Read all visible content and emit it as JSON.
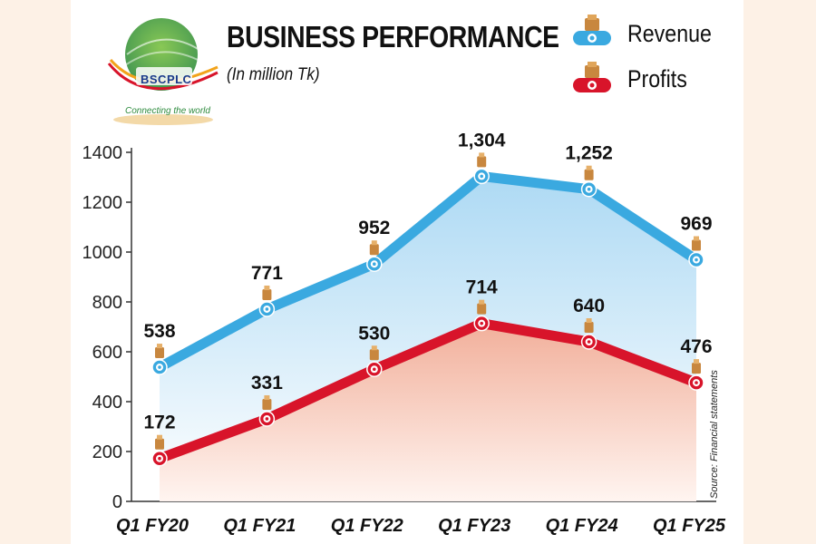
{
  "header": {
    "title": "BUSINESS PERFORMANCE",
    "subtitle": "(In million Tk)"
  },
  "logo": {
    "name": "BSCPLC",
    "tagline": "Connecting the world"
  },
  "legend": {
    "revenue": "Revenue",
    "profits": "Profits"
  },
  "source": "Source: Financial statements",
  "colors": {
    "revenue": "#3aa9e0",
    "profits": "#d8142a"
  },
  "chart_data": {
    "type": "line",
    "categories": [
      "Q1 FY20",
      "Q1 FY21",
      "Q1 FY22",
      "Q1 FY23",
      "Q1 FY24",
      "Q1 FY25"
    ],
    "series": [
      {
        "name": "Revenue",
        "values": [
          538,
          771,
          952,
          1304,
          1252,
          969
        ],
        "labels": [
          "538",
          "771",
          "952",
          "1,304",
          "1,252",
          "969"
        ]
      },
      {
        "name": "Profits",
        "values": [
          172,
          331,
          530,
          714,
          640,
          476
        ],
        "labels": [
          "172",
          "331",
          "530",
          "714",
          "640",
          "476"
        ]
      }
    ],
    "yticks": [
      "0",
      "200",
      "400",
      "600",
      "800",
      "1000",
      "1200",
      "1400"
    ],
    "ylim": [
      0,
      1400
    ],
    "title": "BUSINESS PERFORMANCE",
    "ylabel": "In million Tk"
  }
}
